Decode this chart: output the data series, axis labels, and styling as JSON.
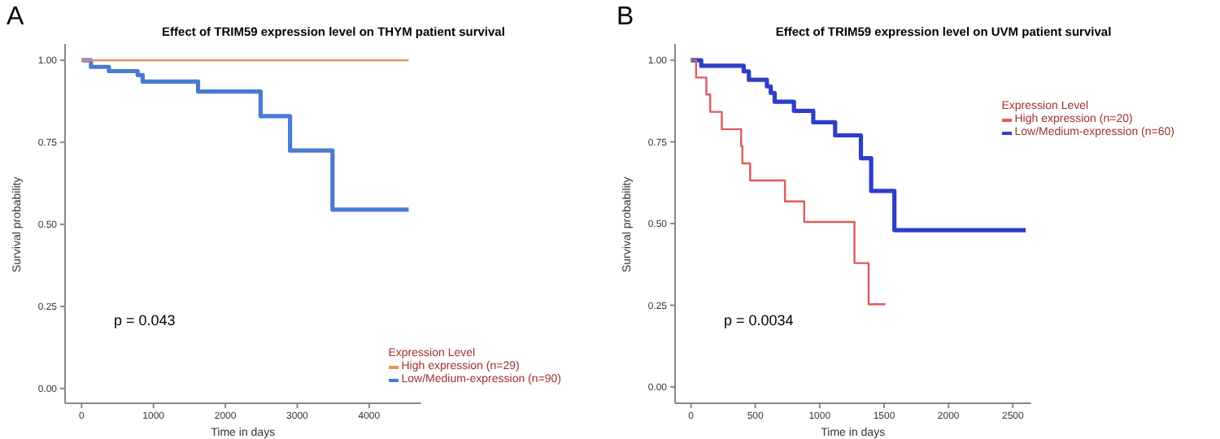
{
  "chart_data": [
    {
      "type": "step",
      "title": "Effect of TRIM59 expression level on THYM patient survival",
      "xlabel": "Time in days",
      "ylabel": "Survival probability",
      "legend_title": "Expression Level",
      "annotations": [
        "A",
        "p = 0.043"
      ],
      "legend": "bottom right",
      "xlim": [
        -230,
        4720
      ],
      "xticks": [
        0,
        1000,
        2000,
        3000,
        4000
      ],
      "ylim": [
        -0.045,
        1.05
      ],
      "yticks": [
        {
          "value": 0,
          "label": "0.00"
        },
        {
          "value": 0.25,
          "label": "0.25"
        },
        {
          "value": 0.5,
          "label": "0.50"
        },
        {
          "value": 0.75,
          "label": "0.75"
        },
        {
          "value": 1,
          "label": "1.00"
        }
      ],
      "series": [
        {
          "name": "High expression (n=29)",
          "color": "#e8935c",
          "x": [
            0,
            4550
          ],
          "values": [
            1,
            1
          ]
        },
        {
          "name": "Low/Medium-expression (n=90)",
          "color": "#4a7bd4",
          "x": [
            0,
            130,
            380,
            780,
            850,
            1620,
            2490,
            2900,
            3490,
            4550
          ],
          "values": [
            1,
            0.98,
            0.967,
            0.955,
            0.935,
            0.905,
            0.83,
            0.725,
            0.545,
            0.545
          ]
        }
      ]
    },
    {
      "type": "step",
      "title": "Effect of TRIM59 expression level on UVM patient survival",
      "xlabel": "Time in days",
      "ylabel": "Survival probability",
      "legend_title": "Expression Level",
      "annotations": [
        "B",
        "p = 0.0034"
      ],
      "legend": "top right",
      "xlim": [
        -123,
        2640
      ],
      "xticks": [
        0,
        500,
        1000,
        1500,
        2000,
        2500
      ],
      "ylim": [
        -0.05,
        1.05
      ],
      "yticks": [
        {
          "value": 0,
          "label": "0.00"
        },
        {
          "value": 0.25,
          "label": "0.25"
        },
        {
          "value": 0.5,
          "label": "0.50"
        },
        {
          "value": 0.75,
          "label": "0.75"
        },
        {
          "value": 1,
          "label": "1.00"
        }
      ],
      "series": [
        {
          "name": "High expression (n=20)",
          "color": "#e05a5a",
          "x": [
            0,
            40,
            120,
            150,
            240,
            390,
            400,
            460,
            730,
            880,
            1270,
            1380,
            1510
          ],
          "values": [
            1,
            0.947,
            0.895,
            0.842,
            0.789,
            0.737,
            0.684,
            0.632,
            0.568,
            0.505,
            0.379,
            0.253,
            0.253
          ]
        },
        {
          "name": "Low/Medium-expression (n=60)",
          "color": "#2e3ec8",
          "x": [
            0,
            80,
            410,
            450,
            590,
            620,
            650,
            800,
            950,
            1120,
            1320,
            1400,
            1580,
            2600
          ],
          "values": [
            1,
            0.983,
            0.966,
            0.94,
            0.92,
            0.9,
            0.873,
            0.845,
            0.81,
            0.77,
            0.7,
            0.6,
            0.48,
            0.48
          ]
        }
      ]
    }
  ]
}
